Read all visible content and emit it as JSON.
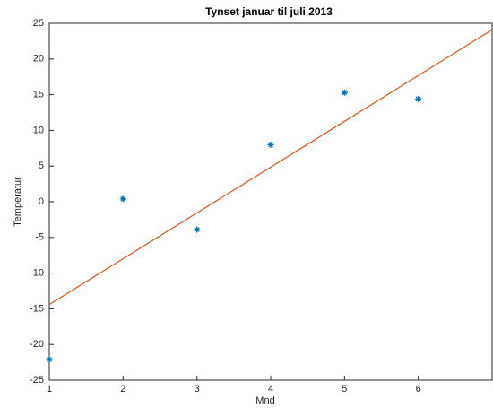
{
  "chart_data": {
    "type": "scatter",
    "title": "Tynset januar til juli 2013",
    "xlabel": "Mnd",
    "ylabel": "Temperatur",
    "xlim": [
      1,
      7
    ],
    "xticks": [
      1,
      2,
      3,
      4,
      5,
      6
    ],
    "ylim": [
      -25,
      25
    ],
    "yticks": [
      -25,
      -20,
      -15,
      -10,
      -5,
      0,
      5,
      10,
      15,
      20,
      25
    ],
    "series": [
      {
        "mode": "markers",
        "color": "#0072bd",
        "x": [
          1,
          2,
          3,
          4,
          5,
          6
        ],
        "values": [
          -22.1,
          0.4,
          -3.9,
          8.0,
          15.3,
          14.4
        ]
      },
      {
        "mode": "line",
        "color": "#d95319",
        "x": [
          1,
          7
        ],
        "values": [
          -14.4,
          24.1
        ]
      }
    ]
  }
}
